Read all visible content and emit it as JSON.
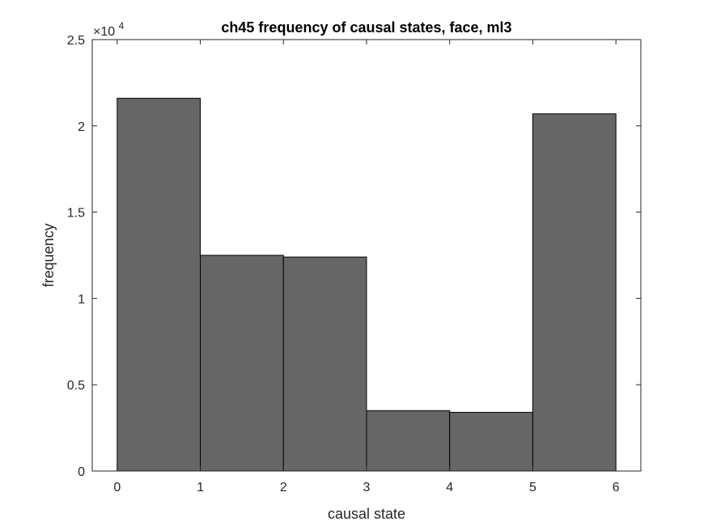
{
  "chart_data": {
    "type": "bar",
    "title": "ch45 frequency of causal states, face, ml3",
    "xlabel": "causal state",
    "ylabel": "frequency",
    "bin_edges": [
      0,
      1,
      2,
      3,
      4,
      5,
      6
    ],
    "values": [
      21600,
      12500,
      12400,
      3500,
      3400,
      20700
    ],
    "xlim": [
      -0.3,
      6.3
    ],
    "ylim": [
      0,
      25000
    ],
    "x_ticks": [
      "0",
      "1",
      "2",
      "3",
      "4",
      "5",
      "6"
    ],
    "y_ticks": [
      "0",
      "0.5",
      "1",
      "1.5",
      "2",
      "2.5"
    ],
    "y_tick_values": [
      0,
      5000,
      10000,
      15000,
      20000,
      25000
    ],
    "y_multiplier": {
      "base": "×10",
      "exponent": "4"
    },
    "bar_color": "#666666",
    "grid": false,
    "legend": "none"
  }
}
